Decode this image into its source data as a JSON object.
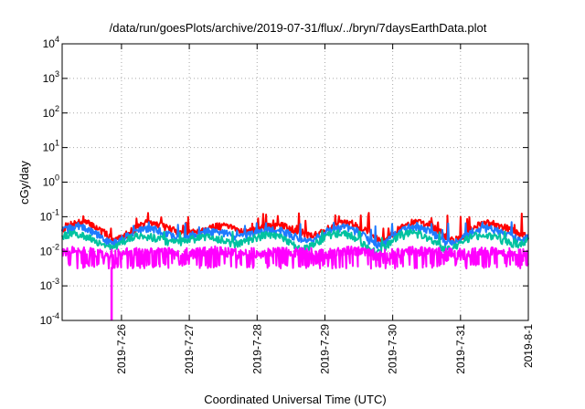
{
  "chart_data": {
    "type": "line",
    "title": "/data/run/goesPlots/archive/2019-07-31/flux/../bryn/7daysEarthData.plot",
    "xlabel": "Coordinated Universal Time (UTC)",
    "ylabel": "cGy/day",
    "yscale": "log",
    "ylim": [
      0.0001,
      10000
    ],
    "xlim": [
      "2019-07-25 03:00",
      "2019-08-01 00:00"
    ],
    "grid": true,
    "yticks": [
      {
        "base": "10",
        "exp": "-4"
      },
      {
        "base": "10",
        "exp": "-3"
      },
      {
        "base": "10",
        "exp": "-2"
      },
      {
        "base": "10",
        "exp": "-1"
      },
      {
        "base": "10",
        "exp": "0"
      },
      {
        "base": "10",
        "exp": "1"
      },
      {
        "base": "10",
        "exp": "2"
      },
      {
        "base": "10",
        "exp": "3"
      },
      {
        "base": "10",
        "exp": "4"
      }
    ],
    "xticks": [
      "2019-7-26",
      "2019-7-27",
      "2019-7-28",
      "2019-7-29",
      "2019-7-30",
      "2019-7-31",
      "2019-8-1"
    ],
    "series": [
      {
        "color": "#ff0000",
        "typical": 0.045,
        "peak": 0.13
      },
      {
        "color": "#1e7bff",
        "typical": 0.033,
        "peak": 0.07
      },
      {
        "color": "#00c2a0",
        "typical": 0.022,
        "peak": 0.04
      },
      {
        "color": "#ff00ff",
        "typical": 0.009,
        "min": 0.0035,
        "dropout": {
          "time": "2019-07-25 20:30",
          "value": 0.0001
        }
      }
    ]
  }
}
